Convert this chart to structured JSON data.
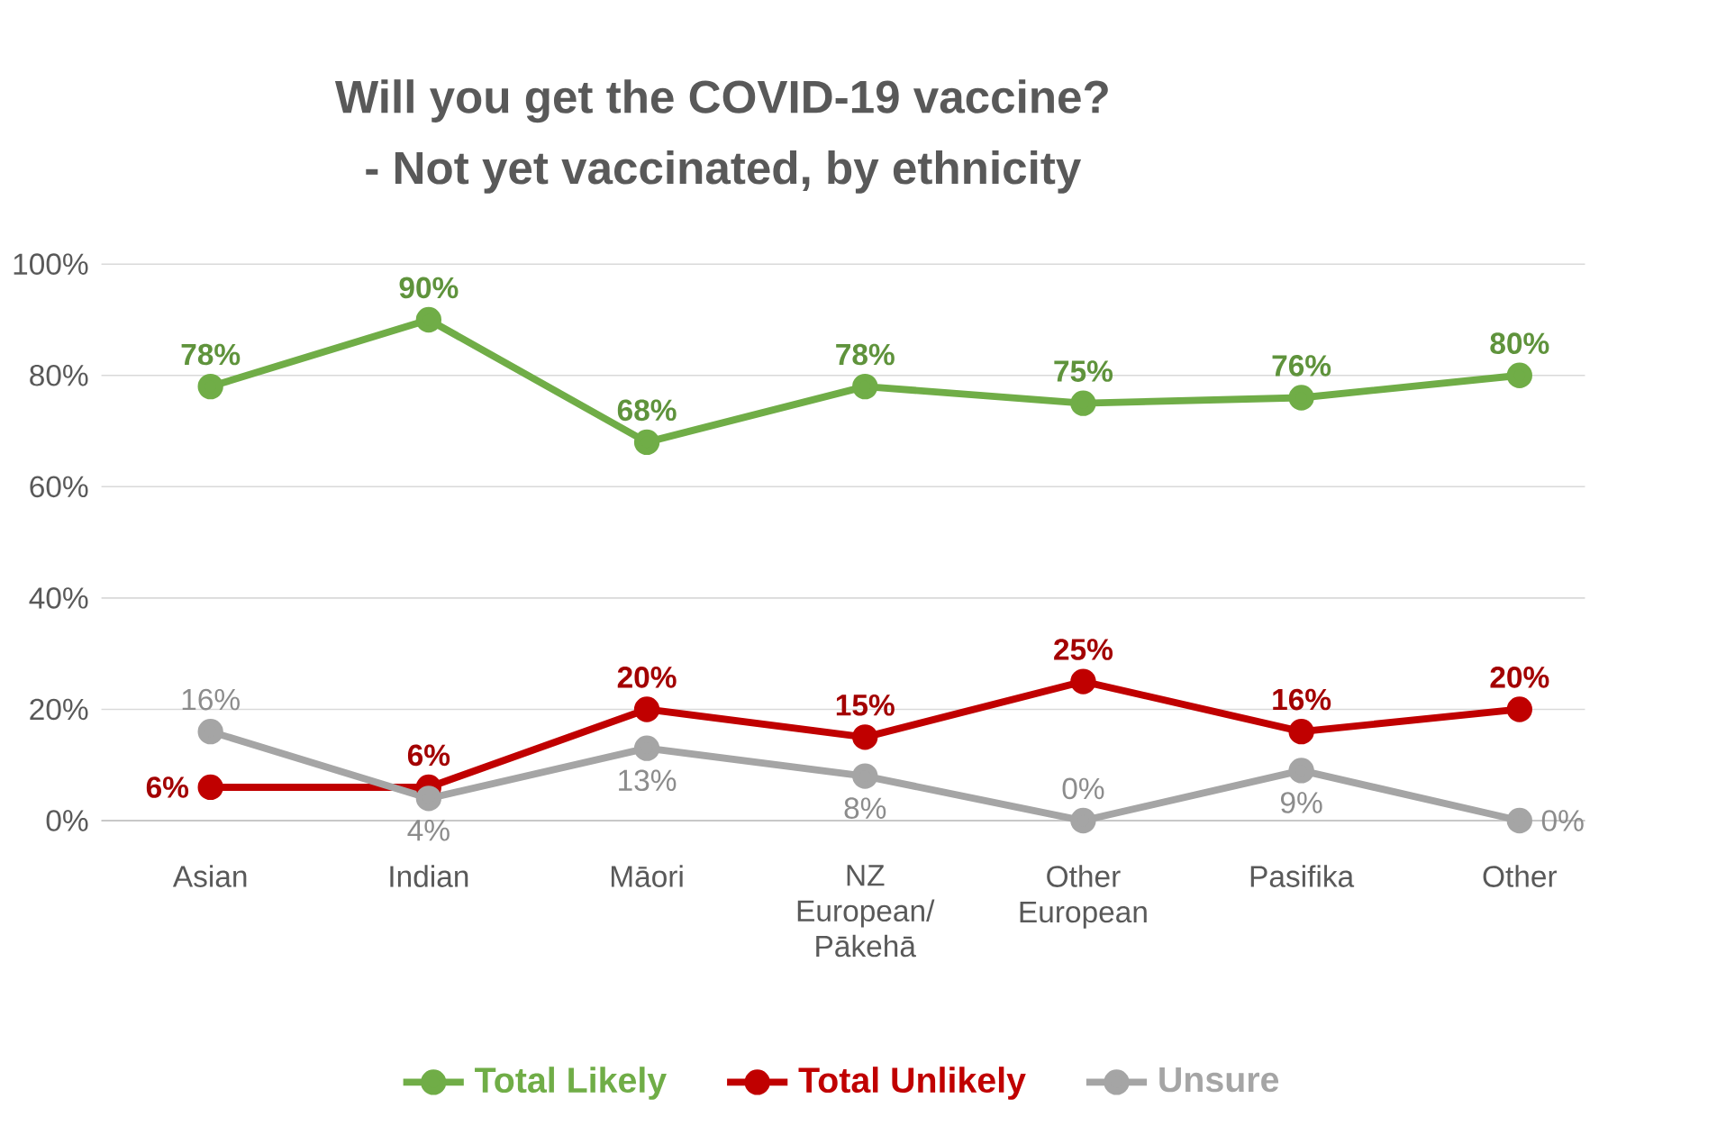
{
  "chart_data": {
    "type": "line",
    "title": "Will you get the COVID-19 vaccine?",
    "subtitle": "- Not yet vaccinated, by ethnicity",
    "categories": [
      "Asian",
      "Indian",
      "Māori",
      "NZ European/ Pākehā",
      "Other European",
      "Pasifika",
      "Other"
    ],
    "series": [
      {
        "name": "Total Likely",
        "color": "#70ad47",
        "values": [
          78,
          90,
          68,
          78,
          75,
          76,
          80
        ],
        "value_labels": [
          "78%",
          "90%",
          "68%",
          "78%",
          "75%",
          "76%",
          "80%"
        ]
      },
      {
        "name": "Total Unlikely",
        "color": "#c00000",
        "values": [
          6,
          6,
          20,
          15,
          25,
          16,
          20
        ],
        "value_labels": [
          "6%",
          "6%",
          "20%",
          "15%",
          "25%",
          "16%",
          "20%"
        ]
      },
      {
        "name": "Unsure",
        "color": "#a5a5a5",
        "values": [
          16,
          4,
          13,
          8,
          0,
          9,
          0
        ],
        "value_labels": [
          "16%",
          "4%",
          "13%",
          "8%",
          "0%",
          "9%",
          "0%"
        ]
      }
    ],
    "ylim": [
      0,
      100
    ],
    "yticks": [
      {
        "value": 0,
        "label": "0%"
      },
      {
        "value": 20,
        "label": "20%"
      },
      {
        "value": 40,
        "label": "40%"
      },
      {
        "value": 60,
        "label": "60%"
      },
      {
        "value": 80,
        "label": "80%"
      },
      {
        "value": 100,
        "label": "100%"
      }
    ],
    "grid": "y",
    "legend": "bottom",
    "marker": "circle",
    "line_style": "solid"
  }
}
